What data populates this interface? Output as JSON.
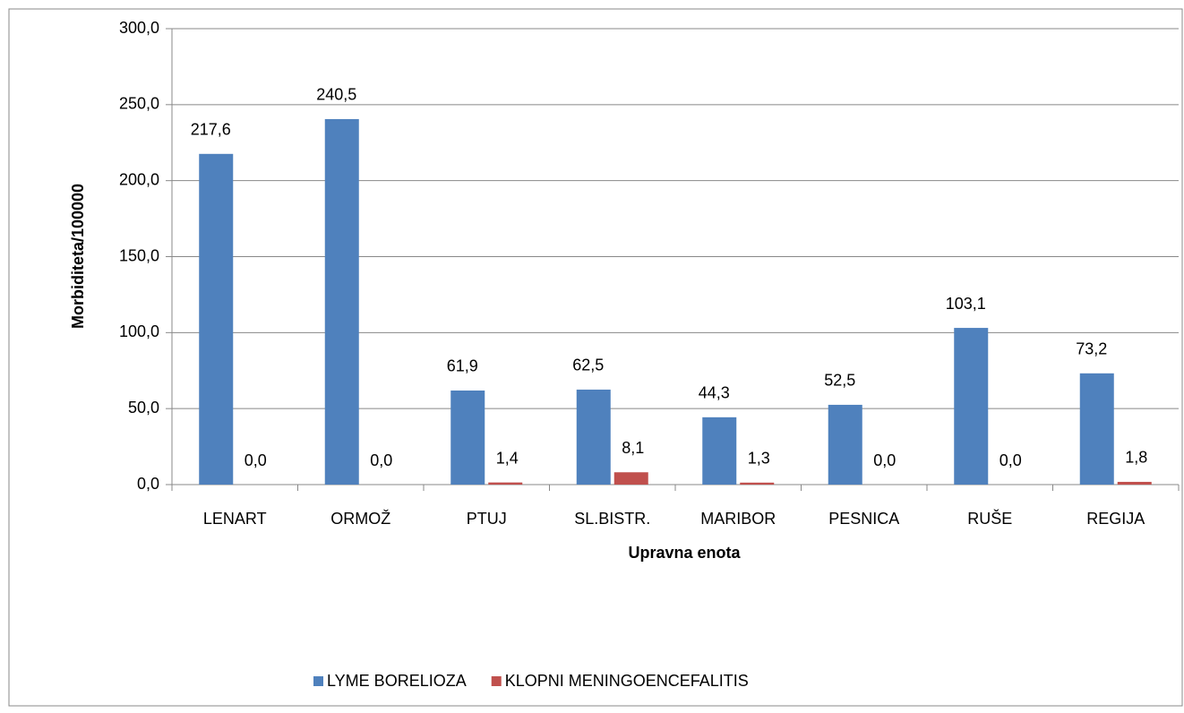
{
  "chart_data": {
    "type": "bar",
    "x_label": "Upravna enota",
    "y_label": "Morbiditeta/100000",
    "categories": [
      "LENART",
      "ORMOŽ",
      "PTUJ",
      "SL.BISTR.",
      "MARIBOR",
      "PESNICA",
      "RUŠE",
      "REGIJA"
    ],
    "series": [
      {
        "name": "LYME BORELIOZA",
        "color": "#4f81bd",
        "values": [
          217.6,
          240.5,
          61.9,
          62.5,
          44.3,
          52.5,
          103.1,
          73.2
        ],
        "value_labels": [
          "217,6",
          "240,5",
          "61,9",
          "62,5",
          "44,3",
          "52,5",
          "103,1",
          "73,2"
        ]
      },
      {
        "name": "KLOPNI MENINGOENCEFALITIS",
        "color": "#c0504d",
        "values": [
          0.0,
          0.0,
          1.4,
          8.1,
          1.3,
          0.0,
          0.0,
          1.8
        ],
        "value_labels": [
          "0,0",
          "0,0",
          "1,4",
          "8,1",
          "1,3",
          "0,0",
          "0,0",
          "1,8"
        ]
      }
    ],
    "ylim": [
      0,
      300
    ],
    "yticks": [
      {
        "value": 0,
        "label": "0,0"
      },
      {
        "value": 50,
        "label": "50,0"
      },
      {
        "value": 100,
        "label": "100,0"
      },
      {
        "value": 150,
        "label": "150,0"
      },
      {
        "value": 200,
        "label": "200,0"
      },
      {
        "value": 250,
        "label": "250,0"
      },
      {
        "value": 300,
        "label": "300,0"
      }
    ],
    "grid": true,
    "legend": "bottom"
  }
}
